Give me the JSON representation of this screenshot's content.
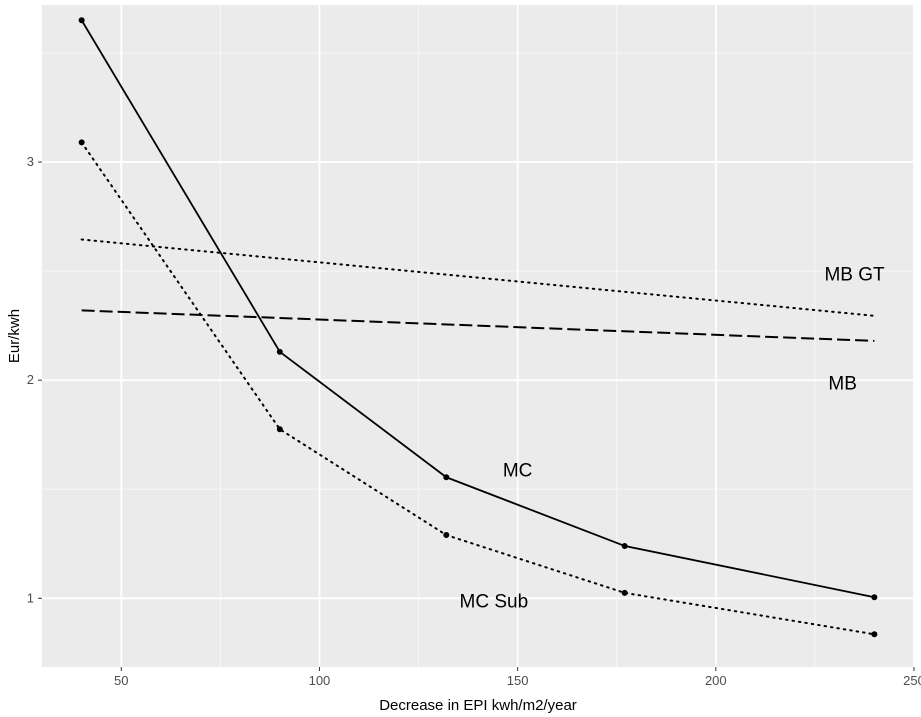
{
  "chart_data": {
    "type": "line",
    "title": "",
    "xlabel": "Decrease in EPI kwh/m2/year",
    "ylabel": "Eur/kwh",
    "xlim": [
      30,
      250
    ],
    "ylim": [
      0.685,
      3.72
    ],
    "x_ticks": [
      50,
      100,
      150,
      200,
      250
    ],
    "y_ticks": [
      1,
      2,
      3
    ],
    "x_tick_labels": [
      "50",
      "100",
      "150",
      "200",
      "250"
    ],
    "y_tick_labels": [
      "1",
      "2",
      "3"
    ],
    "grid": true,
    "legend": "none",
    "background": "#ebebeb",
    "series": [
      {
        "name": "MC",
        "style": "solid",
        "markers": true,
        "x": [
          40,
          90,
          132,
          177,
          240
        ],
        "y": [
          3.65,
          2.13,
          1.555,
          1.24,
          1.005
        ]
      },
      {
        "name": "MC Sub",
        "style": "dotted",
        "markers": true,
        "x": [
          40,
          90,
          132,
          177,
          240
        ],
        "y": [
          3.09,
          1.775,
          1.29,
          1.025,
          0.835
        ]
      },
      {
        "name": "MB",
        "style": "dashed",
        "markers": false,
        "x": [
          40,
          240
        ],
        "y": [
          2.32,
          2.18
        ]
      },
      {
        "name": "MB GT",
        "style": "dotted",
        "markers": false,
        "x": [
          40,
          240
        ],
        "y": [
          2.645,
          2.295
        ]
      }
    ],
    "annotations": [
      {
        "text": "MB GT",
        "x": 235,
        "y": 2.49
      },
      {
        "text": "MB",
        "x": 232,
        "y": 1.99
      },
      {
        "text": "MC",
        "x": 150,
        "y": 1.59
      },
      {
        "text": "MC Sub",
        "x": 144,
        "y": 0.99
      }
    ]
  }
}
